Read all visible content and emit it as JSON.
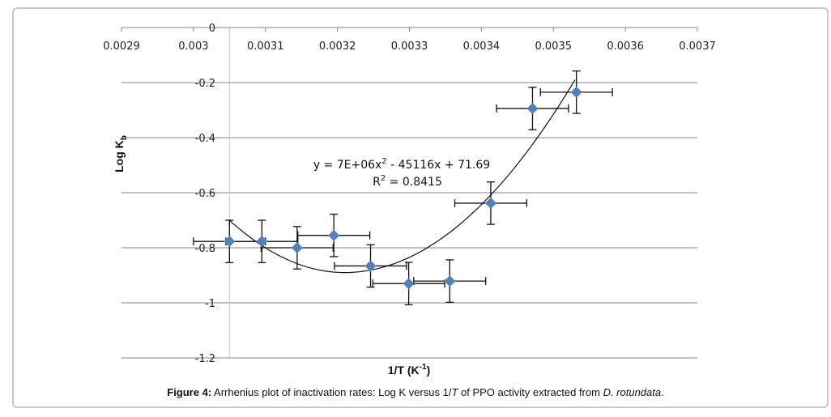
{
  "chart_data": {
    "type": "scatter",
    "title": "",
    "xlabel": "1/T (K",
    "xlabel_sup": "-1",
    "xlabel_end": ")",
    "ylabel": "Log K",
    "ylabel_sub": "b",
    "xlim": [
      0.0029,
      0.0037
    ],
    "ylim": [
      -1.2,
      0
    ],
    "x_axis_position": "top",
    "y_axis_crosses_at_x": 0.00305,
    "grid": "horizontal major gridlines",
    "x_ticks": [
      "0.0029",
      "0.003",
      "0.0031",
      "0.0032",
      "0.0033",
      "0.0034",
      "0.0035",
      "0.0036",
      "0.0037"
    ],
    "x_tick_values": [
      0.0029,
      0.003,
      0.0031,
      0.0032,
      0.0033,
      0.0034,
      0.0035,
      0.0036,
      0.0037
    ],
    "y_ticks": [
      "0",
      "-0.2",
      "-0.4",
      "-0.6",
      "-0.8",
      "-1",
      "-1.2"
    ],
    "y_tick_values": [
      0,
      -0.2,
      -0.4,
      -0.6,
      -0.8,
      -1,
      -1.2
    ],
    "marker": "diamond",
    "marker_color": "#4f81bd",
    "series": [
      {
        "name": "Log Kb",
        "points": [
          {
            "x": 0.00305,
            "y": -0.777,
            "xerr": 5e-05,
            "yerr": 0.077
          },
          {
            "x": 0.003095,
            "y": -0.777,
            "xerr": 5e-05,
            "yerr": 0.077
          },
          {
            "x": 0.003144,
            "y": -0.8,
            "xerr": 5e-05,
            "yerr": 0.077
          },
          {
            "x": 0.003195,
            "y": -0.755,
            "xerr": 5e-05,
            "yerr": 0.077
          },
          {
            "x": 0.003246,
            "y": -0.866,
            "xerr": 5e-05,
            "yerr": 0.077
          },
          {
            "x": 0.003299,
            "y": -0.93,
            "xerr": 5e-05,
            "yerr": 0.077
          },
          {
            "x": 0.003356,
            "y": -0.921,
            "xerr": 5e-05,
            "yerr": 0.077
          },
          {
            "x": 0.003413,
            "y": -0.638,
            "xerr": 5e-05,
            "yerr": 0.077
          },
          {
            "x": 0.003471,
            "y": -0.294,
            "xerr": 5e-05,
            "yerr": 0.077
          },
          {
            "x": 0.003532,
            "y": -0.235,
            "xerr": 5e-05,
            "yerr": 0.077
          }
        ]
      }
    ],
    "trendline": {
      "type": "polynomial-2",
      "x_range": [
        0.00305,
        0.00353
      ],
      "y_range_approx": [
        -0.7,
        -0.19
      ],
      "vertex_approx": {
        "x": 0.00321,
        "y": -0.89
      },
      "equation_text": "y = 7E+06x",
      "equation_sup": "2",
      "equation_rest": " - 45116x + 71.69",
      "r2_text_prefix": "R",
      "r2_sup": "2",
      "r2_text_rest": " = 0.8415"
    }
  },
  "caption": {
    "label": "Figure 4:",
    "text": " Arrhenius plot of inactivation rates: Log K versus 1/",
    "italic_var": "T",
    "text2": " of PPO activity extracted from ",
    "italic_species": "D. rotundata",
    "end": "."
  }
}
